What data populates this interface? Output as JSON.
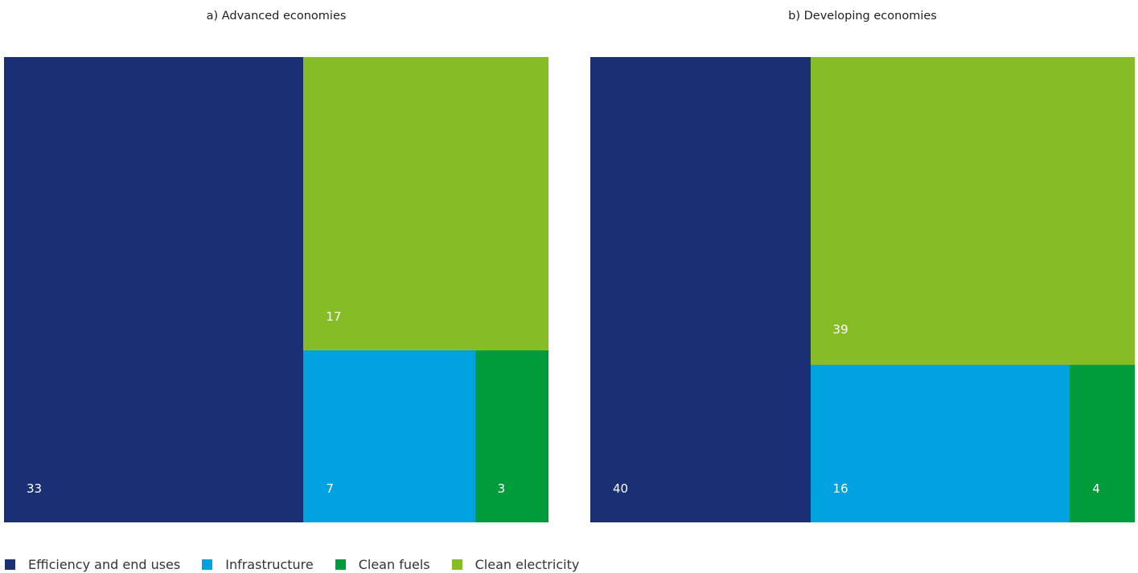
{
  "chart_data": [
    {
      "type": "treemap",
      "title": "a) Advanced economies",
      "categories": [
        "Efficiency and end uses",
        "Clean electricity",
        "Infrastructure",
        "Clean fuels"
      ],
      "values": [
        33,
        17,
        7,
        3
      ]
    },
    {
      "type": "treemap",
      "title": "b) Developing economies",
      "categories": [
        "Efficiency and end uses",
        "Clean electricity",
        "Infrastructure",
        "Clean fuels"
      ],
      "values": [
        40,
        39,
        16,
        4
      ]
    }
  ],
  "legend": {
    "position": "bottom-left",
    "items": [
      {
        "label": "Efficiency and end uses",
        "color": "#1b2f74"
      },
      {
        "label": "Infrastructure",
        "color": "#00a3e0"
      },
      {
        "label": "Clean fuels",
        "color": "#009b3a"
      },
      {
        "label": "Clean electricity",
        "color": "#86bc25"
      }
    ]
  }
}
